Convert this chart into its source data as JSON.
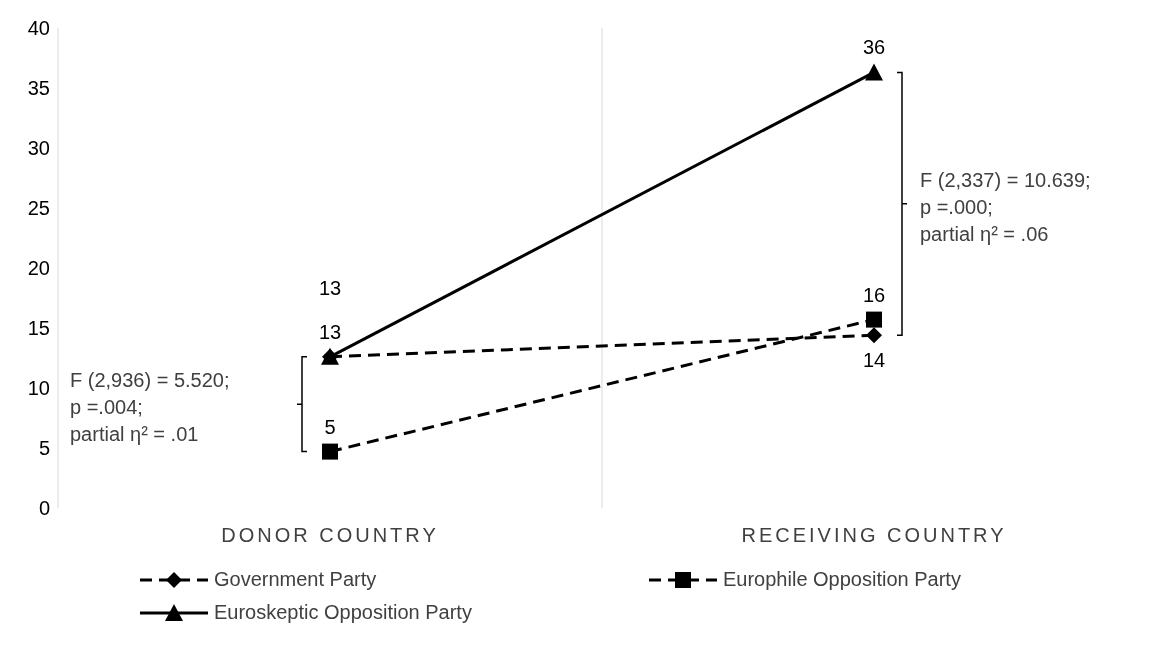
{
  "chart_data": {
    "type": "line",
    "categories": [
      "DONOR COUNTRY",
      "RECEIVING COUNTRY"
    ],
    "series": [
      {
        "name": "Government Party",
        "color": "#000000",
        "values": [
          12.6,
          14.4
        ],
        "value_labels": [
          "13",
          "14"
        ],
        "line_style": "dashed",
        "marker": "diamond"
      },
      {
        "name": "Europhile Opposition Party",
        "color": "#000000",
        "values": [
          4.7,
          15.7
        ],
        "value_labels": [
          "5",
          "16"
        ],
        "line_style": "dashed",
        "marker": "square"
      },
      {
        "name": "Euroskeptic Opposition Party",
        "color": "#000000",
        "values": [
          12.6,
          36.3
        ],
        "value_labels": [
          "13",
          "36"
        ],
        "line_style": "solid",
        "marker": "triangle"
      }
    ],
    "ylim": [
      0,
      40
    ],
    "yticks": [
      0,
      5,
      10,
      15,
      20,
      25,
      30,
      35,
      40
    ],
    "grid": "x",
    "legend": "bottom",
    "annotations": [
      "F (2,936) = 5.520;\np =.004;\npartial η² = .01",
      "F (2,337) = 10.639;\np =.000;\npartial η² = .06"
    ]
  }
}
